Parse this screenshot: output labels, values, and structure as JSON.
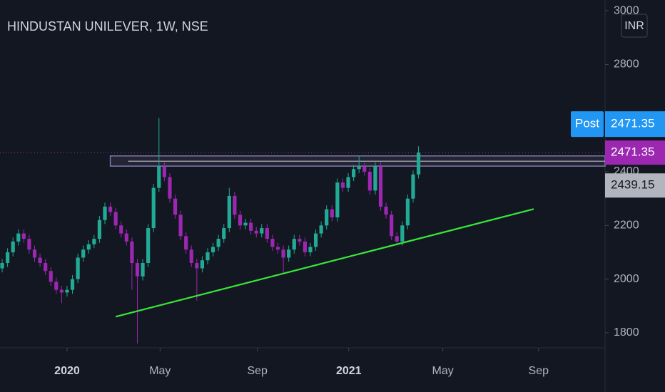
{
  "chart_data": {
    "type": "candlestick",
    "title": "HINDUSTAN UNILEVER, 1W, NSE",
    "currency": "INR",
    "open": [
      2040,
      2060,
      2100,
      2140,
      2170,
      2150,
      2110,
      2080,
      2060,
      2030,
      1990,
      1960,
      1950,
      1960,
      2000,
      2080,
      2110,
      2130,
      2150,
      2220,
      2270,
      2250,
      2200,
      2170,
      2140,
      2060,
      2010,
      2060,
      2190,
      2340,
      2420,
      2380,
      2300,
      2240,
      2160,
      2110,
      2060,
      2040,
      2070,
      2100,
      2120,
      2150,
      2190,
      2310,
      2240,
      2200,
      2210,
      2180,
      2170,
      2190,
      2150,
      2120,
      2110,
      2080,
      2110,
      2150,
      2140,
      2100,
      2120,
      2170,
      2200,
      2260,
      2230,
      2360,
      2340,
      2380,
      2410,
      2420,
      2400,
      2330,
      2420,
      2270,
      2240,
      2160,
      2140,
      2200,
      2300,
      2390
    ],
    "high": [
      2075,
      2115,
      2155,
      2185,
      2185,
      2165,
      2125,
      2095,
      2075,
      2045,
      2005,
      1975,
      1975,
      2015,
      2095,
      2125,
      2145,
      2165,
      2235,
      2285,
      2285,
      2265,
      2215,
      2185,
      2155,
      2075,
      2075,
      2205,
      2355,
      2600,
      2435,
      2395,
      2315,
      2255,
      2175,
      2125,
      2075,
      2085,
      2115,
      2135,
      2165,
      2205,
      2340,
      2325,
      2255,
      2225,
      2225,
      2195,
      2205,
      2205,
      2165,
      2135,
      2125,
      2125,
      2165,
      2165,
      2155,
      2135,
      2185,
      2215,
      2275,
      2275,
      2375,
      2375,
      2395,
      2425,
      2460,
      2435,
      2415,
      2435,
      2435,
      2285,
      2255,
      2175,
      2215,
      2315,
      2405,
      2495
    ],
    "low": [
      2025,
      2045,
      2085,
      2125,
      2135,
      2095,
      2065,
      2045,
      2015,
      1975,
      1945,
      1910,
      1935,
      1945,
      1985,
      2065,
      2095,
      2115,
      2135,
      2205,
      2235,
      2185,
      2155,
      2125,
      1960,
      1760,
      1995,
      2045,
      2175,
      2325,
      2365,
      2285,
      2225,
      2145,
      2095,
      2045,
      1920,
      2025,
      2055,
      2085,
      2105,
      2135,
      2175,
      2225,
      2185,
      2185,
      2165,
      2155,
      2155,
      2135,
      2105,
      2095,
      2020,
      2065,
      2095,
      2125,
      2085,
      2085,
      2105,
      2155,
      2185,
      2215,
      2215,
      2325,
      2325,
      2365,
      2395,
      2385,
      2315,
      2315,
      2255,
      2225,
      2145,
      2125,
      2125,
      2185,
      2285,
      2375
    ],
    "close": [
      2060,
      2100,
      2140,
      2170,
      2150,
      2110,
      2080,
      2060,
      2030,
      1990,
      1960,
      1950,
      1960,
      2000,
      2080,
      2110,
      2130,
      2150,
      2220,
      2270,
      2250,
      2200,
      2170,
      2140,
      2060,
      2010,
      2060,
      2190,
      2340,
      2420,
      2380,
      2300,
      2240,
      2160,
      2110,
      2060,
      2040,
      2070,
      2100,
      2120,
      2150,
      2190,
      2310,
      2240,
      2200,
      2210,
      2180,
      2170,
      2190,
      2150,
      2120,
      2110,
      2080,
      2110,
      2150,
      2140,
      2100,
      2120,
      2170,
      2200,
      2260,
      2230,
      2360,
      2340,
      2380,
      2410,
      2420,
      2400,
      2330,
      2420,
      2270,
      2240,
      2160,
      2140,
      2200,
      2300,
      2390,
      2471.35
    ],
    "up_color": "#22ab94",
    "down_color": "#9c27b0",
    "xlim": [
      -0.4,
      111.5
    ],
    "xticks": [
      {
        "value": 12,
        "label": "2020"
      },
      {
        "value": 29.2,
        "label": "May"
      },
      {
        "value": 47.2,
        "label": "Sep"
      },
      {
        "value": 64.1,
        "label": "2021"
      },
      {
        "value": 81.5,
        "label": "May"
      },
      {
        "value": 99.2,
        "label": "Sep"
      }
    ],
    "ylim": [
      1744,
      3040
    ],
    "yticks": [
      1800,
      2000,
      2200,
      2400,
      2600,
      2800,
      3000
    ],
    "trendline": {
      "x": [
        21,
        98.3
      ],
      "y": [
        1860,
        2261
      ],
      "color": "#39e639"
    },
    "zone": {
      "y": [
        2421,
        2459
      ],
      "x_start": 20,
      "color": "#7e7ba8"
    },
    "post_price": {
      "label": "Post",
      "value": 2471.35,
      "color": "#2196f3"
    },
    "last_price": {
      "value": 2471.35,
      "color": "#9c27b0"
    },
    "level_price": {
      "value": 2439.15,
      "color": "#b2b5be"
    }
  }
}
